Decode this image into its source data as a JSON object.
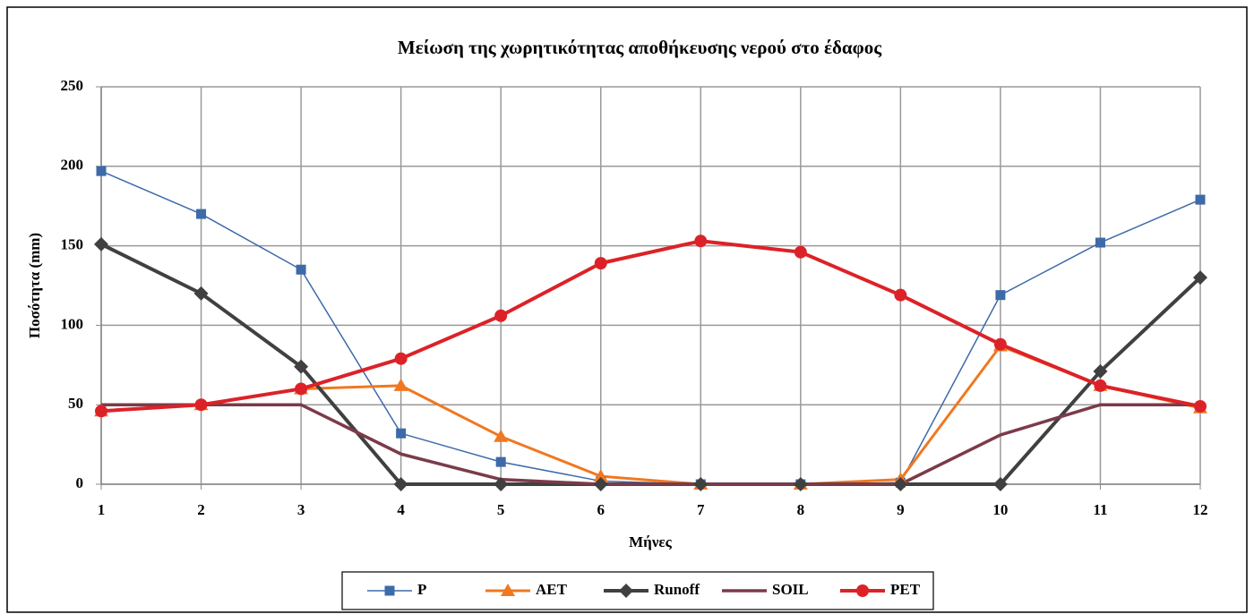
{
  "chart_data": {
    "type": "line",
    "title": "Μείωση της χωρητικότητας αποθήκευσης νερού στο έδαφος",
    "xlabel": "Μήνες",
    "ylabel": "Ποσότητα (mm)",
    "x": [
      1,
      2,
      3,
      4,
      5,
      6,
      7,
      8,
      9,
      10,
      11,
      12
    ],
    "xlim": [
      1,
      12
    ],
    "xticks": [
      1,
      2,
      3,
      4,
      5,
      6,
      7,
      8,
      9,
      10,
      11,
      12
    ],
    "ylim": [
      0,
      250
    ],
    "yticks": [
      0,
      50,
      100,
      150,
      200,
      250
    ],
    "grid": true,
    "legend": "bottom",
    "series": [
      {
        "name": "P",
        "color": "#3d6aa8",
        "marker": "square",
        "width": 1.5,
        "values": [
          197,
          170,
          135,
          32,
          14,
          2,
          0,
          0,
          1,
          119,
          152,
          179
        ]
      },
      {
        "name": "AET",
        "color": "#f07820",
        "marker": "triangle",
        "width": 3,
        "values": [
          46,
          50,
          60,
          62,
          30,
          5,
          0,
          0,
          3,
          87,
          62,
          48
        ]
      },
      {
        "name": "Runoff",
        "color": "#404040",
        "marker": "diamond",
        "width": 4,
        "values": [
          151,
          120,
          74,
          0,
          0,
          0,
          0,
          0,
          0,
          0,
          71,
          130
        ]
      },
      {
        "name": "SOIL",
        "color": "#7b3b4a",
        "marker": "none",
        "width": 3.5,
        "values": [
          50,
          50,
          50,
          19,
          3,
          0,
          0,
          0,
          0,
          31,
          50,
          50
        ]
      },
      {
        "name": "PET",
        "color": "#dc2228",
        "marker": "circle",
        "width": 4,
        "values": [
          46,
          50,
          60,
          79,
          106,
          139,
          153,
          146,
          119,
          88,
          62,
          49
        ]
      }
    ]
  }
}
